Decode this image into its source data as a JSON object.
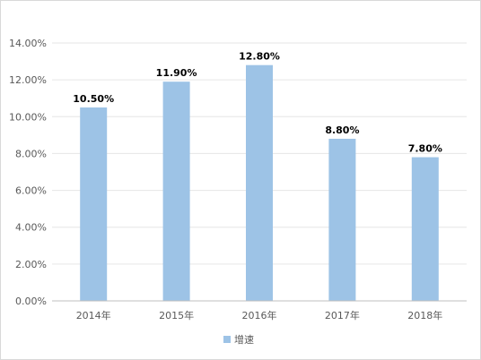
{
  "chart_data": {
    "type": "bar",
    "categories": [
      "2014年",
      "2015年",
      "2016年",
      "2017年",
      "2018年"
    ],
    "series": [
      {
        "name": "增速",
        "values": [
          10.5,
          11.9,
          12.8,
          8.8,
          7.8
        ],
        "labels": [
          "10.50%",
          "11.90%",
          "12.80%",
          "8.80%",
          "7.80%"
        ],
        "color": "#9dc3e6"
      }
    ],
    "ylim": [
      0,
      14
    ],
    "yticks": [
      0,
      2,
      4,
      6,
      8,
      10,
      12,
      14
    ],
    "ytick_labels": [
      "0.00%",
      "2.00%",
      "4.00%",
      "6.00%",
      "8.00%",
      "10.00%",
      "12.00%",
      "14.00%"
    ],
    "grid": true,
    "gridline_color": "#e6e6e6",
    "axis_color": "#bfbfbf",
    "legend": {
      "position": "bottom",
      "label": "增速"
    },
    "title": "",
    "xlabel": "",
    "ylabel": ""
  }
}
